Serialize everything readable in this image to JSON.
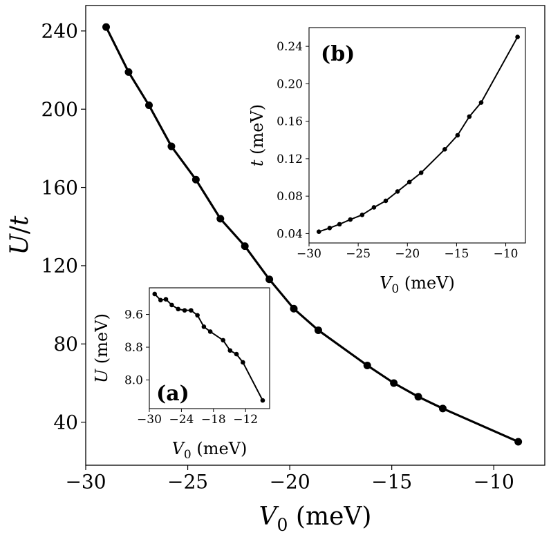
{
  "chart_data": [
    {
      "id": "main",
      "type": "line",
      "xlabel": "V_0 (meV)",
      "ylabel": "U/t",
      "xlim": [
        -30,
        -7.5
      ],
      "ylim": [
        18,
        253
      ],
      "xticks": [
        -30,
        -25,
        -20,
        -15,
        -10
      ],
      "xtick_labels": [
        "−30",
        "−25",
        "−20",
        "−15",
        "−10"
      ],
      "yticks": [
        40,
        80,
        120,
        160,
        200,
        240
      ],
      "ytick_labels": [
        "40",
        "80",
        "120",
        "160",
        "200",
        "240"
      ],
      "x": [
        -29.0,
        -27.9,
        -26.9,
        -25.8,
        -24.6,
        -23.4,
        -22.2,
        -21.0,
        -19.8,
        -18.6,
        -16.2,
        -14.9,
        -13.7,
        -12.5,
        -8.8
      ],
      "y": [
        242,
        219,
        202,
        181,
        164,
        144,
        130,
        113,
        98,
        87,
        69,
        60,
        53,
        47,
        30
      ]
    },
    {
      "id": "inset-b",
      "type": "line",
      "panel_label": "(b)",
      "xlabel": "V_0 (meV)",
      "ylabel": "t (meV)",
      "xlim": [
        -30,
        -8
      ],
      "ylim": [
        0.03,
        0.26
      ],
      "xticks": [
        -30,
        -25,
        -20,
        -15,
        -10
      ],
      "xtick_labels": [
        "−30",
        "−25",
        "−20",
        "−15",
        "−10"
      ],
      "yticks": [
        0.04,
        0.08,
        0.12,
        0.16,
        0.2,
        0.24
      ],
      "ytick_labels": [
        "0.04",
        "0.08",
        "0.12",
        "0.16",
        "0.20",
        "0.24"
      ],
      "x": [
        -29.0,
        -27.9,
        -26.9,
        -25.8,
        -24.6,
        -23.4,
        -22.2,
        -21.0,
        -19.8,
        -18.6,
        -16.2,
        -14.9,
        -13.7,
        -12.5,
        -8.8
      ],
      "y": [
        0.042,
        0.046,
        0.05,
        0.055,
        0.06,
        0.068,
        0.075,
        0.085,
        0.095,
        0.105,
        0.13,
        0.145,
        0.165,
        0.18,
        0.25
      ]
    },
    {
      "id": "inset-a",
      "type": "line",
      "panel_label": "(a)",
      "xlabel": "V_0 (meV)",
      "ylabel": "U (meV)",
      "xlim": [
        -30,
        -7.5
      ],
      "ylim": [
        7.3,
        10.25
      ],
      "xticks": [
        -30,
        -24,
        -18,
        -12
      ],
      "xtick_labels": [
        "−30",
        "−24",
        "−18",
        "−12"
      ],
      "yticks": [
        8.0,
        8.8,
        9.6
      ],
      "ytick_labels": [
        "8.0",
        "8.8",
        "9.6"
      ],
      "x": [
        -29.0,
        -27.9,
        -26.9,
        -25.8,
        -24.6,
        -23.4,
        -22.2,
        -21.0,
        -19.8,
        -18.6,
        -16.2,
        -14.9,
        -13.7,
        -12.5,
        -8.8
      ],
      "y": [
        10.1,
        9.95,
        9.97,
        9.83,
        9.73,
        9.7,
        9.7,
        9.58,
        9.3,
        9.18,
        8.97,
        8.72,
        8.63,
        8.43,
        7.5
      ]
    }
  ]
}
